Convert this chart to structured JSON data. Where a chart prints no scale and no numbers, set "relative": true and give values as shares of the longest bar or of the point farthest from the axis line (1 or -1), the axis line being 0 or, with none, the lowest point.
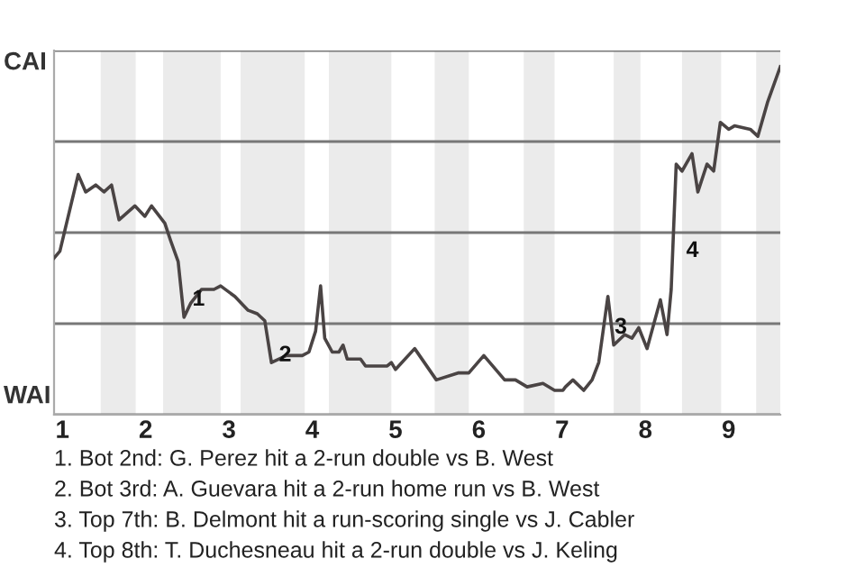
{
  "chart_data": {
    "type": "line",
    "relative": true,
    "x": [
      0.9,
      0.97,
      1.19,
      1.28,
      1.4,
      1.5,
      1.59,
      1.68,
      1.87,
      1.99,
      2.07,
      2.23,
      2.3,
      2.39,
      2.46,
      2.54,
      2.67,
      2.82,
      2.9,
      3.07,
      3.23,
      3.34,
      3.43,
      3.51,
      3.69,
      3.88,
      3.96,
      4.04,
      4.1,
      4.15,
      4.24,
      4.32,
      4.37,
      4.42,
      4.58,
      4.64,
      4.9,
      4.95,
      5.0,
      5.23,
      5.49,
      5.75,
      5.88,
      6.06,
      6.31,
      6.44,
      6.58,
      6.77,
      6.91,
      7.01,
      7.04,
      7.13,
      7.26,
      7.36,
      7.44,
      7.55,
      7.62,
      7.75,
      7.84,
      7.92,
      8.02,
      8.18,
      8.26,
      8.31,
      8.37,
      8.44,
      8.56,
      8.63,
      8.74,
      8.82,
      8.9,
      9.0,
      9.07,
      9.26,
      9.35,
      9.47,
      9.62
    ],
    "series": [
      {
        "color": "#4a4444",
        "values": [
          0.45,
          0.47,
          0.69,
          0.64,
          0.66,
          0.64,
          0.66,
          0.56,
          0.6,
          0.57,
          0.6,
          0.55,
          0.5,
          0.44,
          0.28,
          0.32,
          0.36,
          0.36,
          0.37,
          0.34,
          0.3,
          0.29,
          0.27,
          0.15,
          0.17,
          0.17,
          0.18,
          0.24,
          0.37,
          0.22,
          0.18,
          0.18,
          0.2,
          0.16,
          0.16,
          0.14,
          0.14,
          0.15,
          0.13,
          0.19,
          0.1,
          0.12,
          0.12,
          0.17,
          0.1,
          0.1,
          0.08,
          0.09,
          0.07,
          0.07,
          0.08,
          0.1,
          0.07,
          0.1,
          0.15,
          0.34,
          0.2,
          0.23,
          0.22,
          0.25,
          0.19,
          0.33,
          0.23,
          0.36,
          0.72,
          0.7,
          0.75,
          0.64,
          0.72,
          0.7,
          0.84,
          0.82,
          0.83,
          0.82,
          0.8,
          0.9,
          1.0
        ]
      }
    ],
    "xlim": [
      0.9,
      9.62
    ],
    "xticks": [
      1,
      2,
      3,
      4,
      5,
      6,
      7,
      8,
      9
    ],
    "grid": "y",
    "bands": [
      {
        "axis": "x",
        "from": 1.46,
        "to": 1.88,
        "color": "#ebebeb"
      },
      {
        "axis": "x",
        "from": 2.21,
        "to": 2.9,
        "color": "#ebebeb"
      },
      {
        "axis": "x",
        "from": 3.14,
        "to": 3.91,
        "color": "#ebebeb"
      },
      {
        "axis": "x",
        "from": 4.2,
        "to": 4.95,
        "color": "#ebebeb"
      },
      {
        "axis": "x",
        "from": 5.47,
        "to": 5.88,
        "color": "#ebebeb"
      },
      {
        "axis": "x",
        "from": 6.54,
        "to": 6.91,
        "color": "#ebebeb"
      },
      {
        "axis": "x",
        "from": 7.62,
        "to": 7.94,
        "color": "#ebebeb"
      },
      {
        "axis": "x",
        "from": 8.44,
        "to": 8.91,
        "color": "#ebebeb"
      },
      {
        "axis": "x",
        "from": 9.33,
        "to": 9.62,
        "color": "#ebebeb"
      }
    ],
    "annotations": [
      "CAI",
      "WAI",
      {
        "text": "1",
        "x": 2.56,
        "y": 0.33
      },
      {
        "text": "2",
        "x": 3.6,
        "y": 0.17
      },
      {
        "text": "3",
        "x": 7.63,
        "y": 0.25
      },
      {
        "text": "4",
        "x": 8.49,
        "y": 0.47
      },
      "1. Bot 2nd: G. Perez hit a 2-run double vs B. West",
      "2. Bot 3rd: A. Guevara hit a 2-run home run vs B. West",
      "3. Top 7th: B. Delmont hit a run-scoring single vs J. Cabler",
      "4. Top 8th: T. Duchesneau hit a 2-run double vs J. Keling"
    ]
  }
}
